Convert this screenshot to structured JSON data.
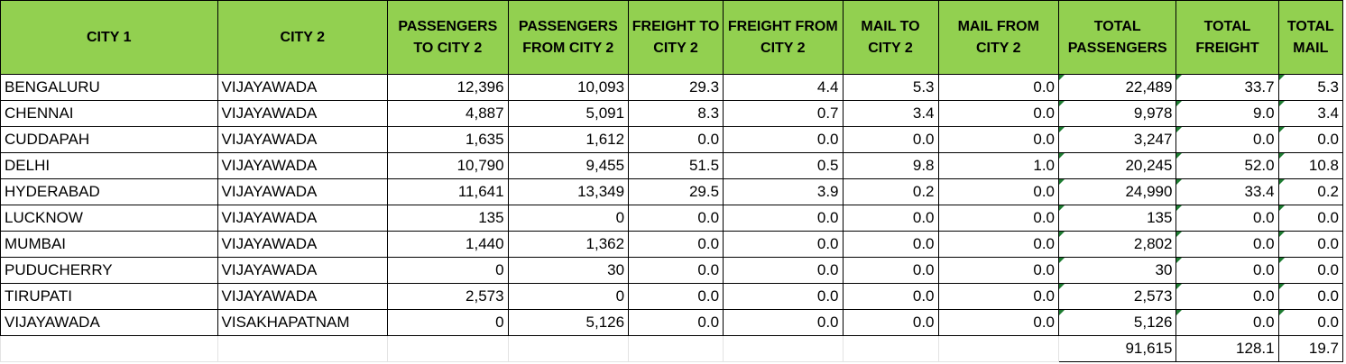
{
  "headers": [
    "CITY 1",
    "CITY 2",
    "PASSENGERS TO CITY 2",
    "PASSENGERS FROM CITY 2",
    "FREIGHT TO CITY 2",
    "FREIGHT FROM CITY 2",
    "MAIL TO CITY 2",
    "MAIL FROM CITY 2",
    "TOTAL PASSENGERS",
    "TOTAL FREIGHT",
    "TOTAL MAIL"
  ],
  "rows": [
    [
      "BENGALURU",
      "VIJAYAWADA",
      "12,396",
      "10,093",
      "29.3",
      "4.4",
      "5.3",
      "0.0",
      "22,489",
      "33.7",
      "5.3"
    ],
    [
      "CHENNAI",
      "VIJAYAWADA",
      "4,887",
      "5,091",
      "8.3",
      "0.7",
      "3.4",
      "0.0",
      "9,978",
      "9.0",
      "3.4"
    ],
    [
      "CUDDAPAH",
      "VIJAYAWADA",
      "1,635",
      "1,612",
      "0.0",
      "0.0",
      "0.0",
      "0.0",
      "3,247",
      "0.0",
      "0.0"
    ],
    [
      "DELHI",
      "VIJAYAWADA",
      "10,790",
      "9,455",
      "51.5",
      "0.5",
      "9.8",
      "1.0",
      "20,245",
      "52.0",
      "10.8"
    ],
    [
      "HYDERABAD",
      "VIJAYAWADA",
      "11,641",
      "13,349",
      "29.5",
      "3.9",
      "0.2",
      "0.0",
      "24,990",
      "33.4",
      "0.2"
    ],
    [
      "LUCKNOW",
      "VIJAYAWADA",
      "135",
      "0",
      "0.0",
      "0.0",
      "0.0",
      "0.0",
      "135",
      "0.0",
      "0.0"
    ],
    [
      "MUMBAI",
      "VIJAYAWADA",
      "1,440",
      "1,362",
      "0.0",
      "0.0",
      "0.0",
      "0.0",
      "2,802",
      "0.0",
      "0.0"
    ],
    [
      "PUDUCHERRY",
      "VIJAYAWADA",
      "0",
      "30",
      "0.0",
      "0.0",
      "0.0",
      "0.0",
      "30",
      "0.0",
      "0.0"
    ],
    [
      "TIRUPATI",
      "VIJAYAWADA",
      "2,573",
      "0",
      "0.0",
      "0.0",
      "0.0",
      "0.0",
      "2,573",
      "0.0",
      "0.0"
    ],
    [
      "VIJAYAWADA",
      "VISAKHAPATNAM",
      "0",
      "5,126",
      "0.0",
      "0.0",
      "0.0",
      "0.0",
      "5,126",
      "0.0",
      "0.0"
    ]
  ],
  "totals": {
    "total_passengers": "91,615",
    "total_freight": "128.1",
    "total_mail": "19.7"
  },
  "colors": {
    "header_fill": "#92d050",
    "error_indicator": "#1e7d32"
  }
}
